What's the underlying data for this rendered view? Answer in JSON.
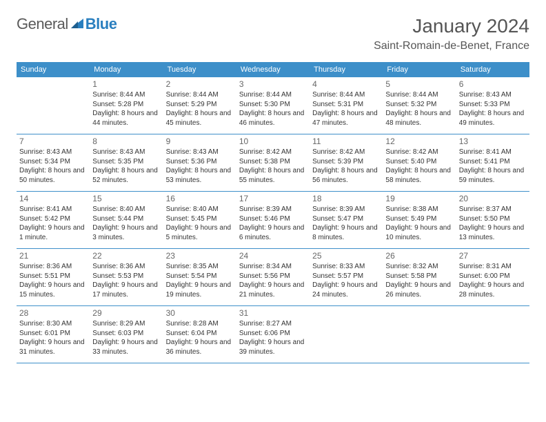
{
  "brand": {
    "word1": "General",
    "word2": "Blue",
    "logo_color": "#2a7fbf",
    "text_color": "#5a5a5a"
  },
  "title": "January 2024",
  "location": "Saint-Romain-de-Benet, France",
  "calendar": {
    "header_bg": "#3d8fc9",
    "header_fg": "#ffffff",
    "rule_color": "#3d8fc9",
    "background": "#ffffff",
    "text_color": "#333333",
    "day_names": [
      "Sunday",
      "Monday",
      "Tuesday",
      "Wednesday",
      "Thursday",
      "Friday",
      "Saturday"
    ],
    "weeks": [
      [
        null,
        {
          "n": "1",
          "sunrise": "8:44 AM",
          "sunset": "5:28 PM",
          "daylight": "8 hours and 44 minutes."
        },
        {
          "n": "2",
          "sunrise": "8:44 AM",
          "sunset": "5:29 PM",
          "daylight": "8 hours and 45 minutes."
        },
        {
          "n": "3",
          "sunrise": "8:44 AM",
          "sunset": "5:30 PM",
          "daylight": "8 hours and 46 minutes."
        },
        {
          "n": "4",
          "sunrise": "8:44 AM",
          "sunset": "5:31 PM",
          "daylight": "8 hours and 47 minutes."
        },
        {
          "n": "5",
          "sunrise": "8:44 AM",
          "sunset": "5:32 PM",
          "daylight": "8 hours and 48 minutes."
        },
        {
          "n": "6",
          "sunrise": "8:43 AM",
          "sunset": "5:33 PM",
          "daylight": "8 hours and 49 minutes."
        }
      ],
      [
        {
          "n": "7",
          "sunrise": "8:43 AM",
          "sunset": "5:34 PM",
          "daylight": "8 hours and 50 minutes."
        },
        {
          "n": "8",
          "sunrise": "8:43 AM",
          "sunset": "5:35 PM",
          "daylight": "8 hours and 52 minutes."
        },
        {
          "n": "9",
          "sunrise": "8:43 AM",
          "sunset": "5:36 PM",
          "daylight": "8 hours and 53 minutes."
        },
        {
          "n": "10",
          "sunrise": "8:42 AM",
          "sunset": "5:38 PM",
          "daylight": "8 hours and 55 minutes."
        },
        {
          "n": "11",
          "sunrise": "8:42 AM",
          "sunset": "5:39 PM",
          "daylight": "8 hours and 56 minutes."
        },
        {
          "n": "12",
          "sunrise": "8:42 AM",
          "sunset": "5:40 PM",
          "daylight": "8 hours and 58 minutes."
        },
        {
          "n": "13",
          "sunrise": "8:41 AM",
          "sunset": "5:41 PM",
          "daylight": "8 hours and 59 minutes."
        }
      ],
      [
        {
          "n": "14",
          "sunrise": "8:41 AM",
          "sunset": "5:42 PM",
          "daylight": "9 hours and 1 minute."
        },
        {
          "n": "15",
          "sunrise": "8:40 AM",
          "sunset": "5:44 PM",
          "daylight": "9 hours and 3 minutes."
        },
        {
          "n": "16",
          "sunrise": "8:40 AM",
          "sunset": "5:45 PM",
          "daylight": "9 hours and 5 minutes."
        },
        {
          "n": "17",
          "sunrise": "8:39 AM",
          "sunset": "5:46 PM",
          "daylight": "9 hours and 6 minutes."
        },
        {
          "n": "18",
          "sunrise": "8:39 AM",
          "sunset": "5:47 PM",
          "daylight": "9 hours and 8 minutes."
        },
        {
          "n": "19",
          "sunrise": "8:38 AM",
          "sunset": "5:49 PM",
          "daylight": "9 hours and 10 minutes."
        },
        {
          "n": "20",
          "sunrise": "8:37 AM",
          "sunset": "5:50 PM",
          "daylight": "9 hours and 13 minutes."
        }
      ],
      [
        {
          "n": "21",
          "sunrise": "8:36 AM",
          "sunset": "5:51 PM",
          "daylight": "9 hours and 15 minutes."
        },
        {
          "n": "22",
          "sunrise": "8:36 AM",
          "sunset": "5:53 PM",
          "daylight": "9 hours and 17 minutes."
        },
        {
          "n": "23",
          "sunrise": "8:35 AM",
          "sunset": "5:54 PM",
          "daylight": "9 hours and 19 minutes."
        },
        {
          "n": "24",
          "sunrise": "8:34 AM",
          "sunset": "5:56 PM",
          "daylight": "9 hours and 21 minutes."
        },
        {
          "n": "25",
          "sunrise": "8:33 AM",
          "sunset": "5:57 PM",
          "daylight": "9 hours and 24 minutes."
        },
        {
          "n": "26",
          "sunrise": "8:32 AM",
          "sunset": "5:58 PM",
          "daylight": "9 hours and 26 minutes."
        },
        {
          "n": "27",
          "sunrise": "8:31 AM",
          "sunset": "6:00 PM",
          "daylight": "9 hours and 28 minutes."
        }
      ],
      [
        {
          "n": "28",
          "sunrise": "8:30 AM",
          "sunset": "6:01 PM",
          "daylight": "9 hours and 31 minutes."
        },
        {
          "n": "29",
          "sunrise": "8:29 AM",
          "sunset": "6:03 PM",
          "daylight": "9 hours and 33 minutes."
        },
        {
          "n": "30",
          "sunrise": "8:28 AM",
          "sunset": "6:04 PM",
          "daylight": "9 hours and 36 minutes."
        },
        {
          "n": "31",
          "sunrise": "8:27 AM",
          "sunset": "6:06 PM",
          "daylight": "9 hours and 39 minutes."
        },
        null,
        null,
        null
      ]
    ]
  }
}
